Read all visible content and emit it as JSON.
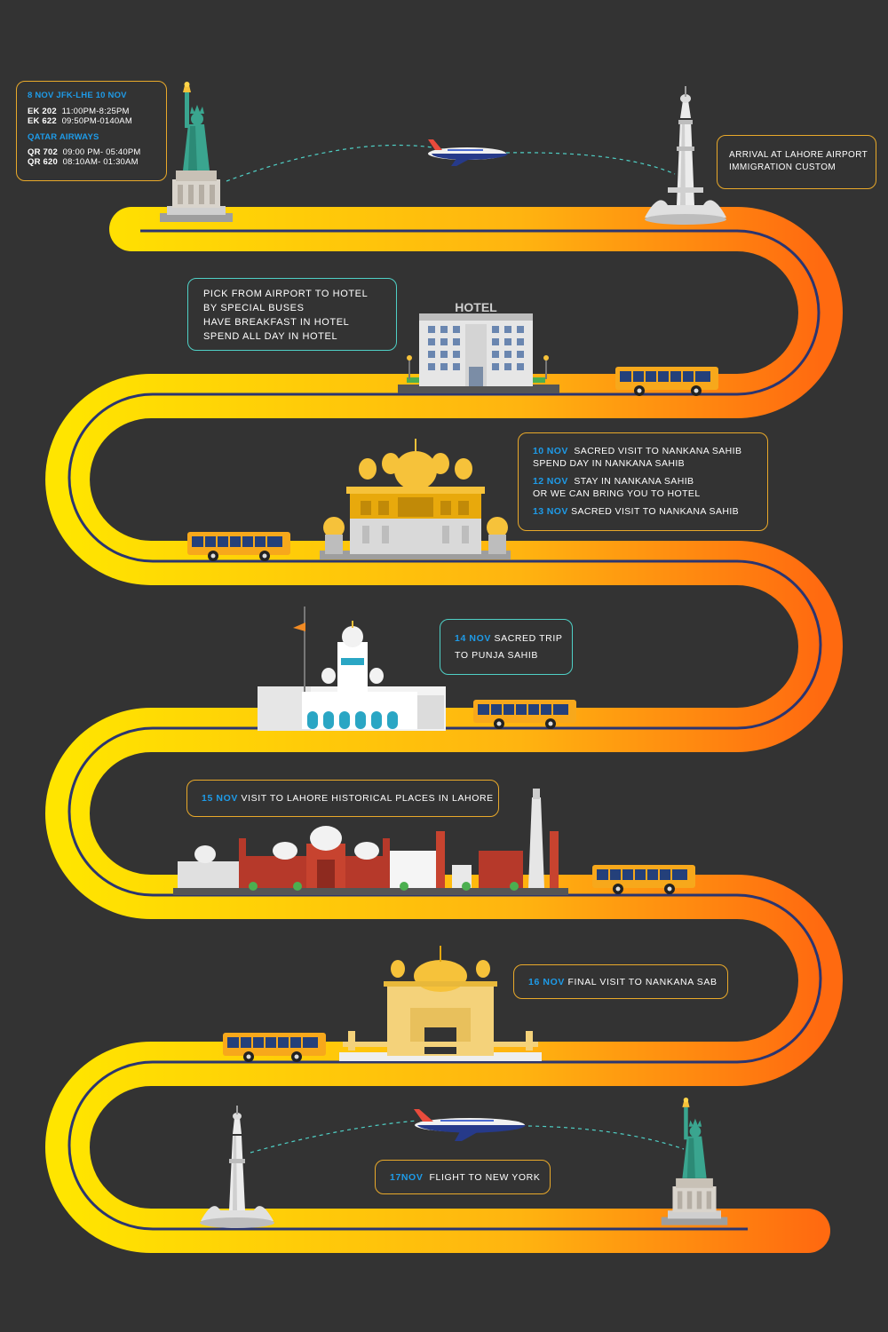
{
  "colors": {
    "background": "#333333",
    "road_start": "#ffe500",
    "road_end": "#ff6a10",
    "road_center_line": "#2b3570",
    "box_border_orange": "#e9a92a",
    "box_border_teal": "#4fd0c6",
    "highlight_blue": "#1e9be8"
  },
  "flight_out": {
    "header": "8 NOV JFK-LHE 10 NOV",
    "ek1_code": "EK 202",
    "ek1_time": "11:00PM-8:25PM",
    "ek2_code": "EK 622",
    "ek2_time": "09:50PM-0140AM",
    "airline": "QATAR AIRWAYS",
    "qr1_code": "QR 702",
    "qr1_time": "09:00 PM- 05:40PM",
    "qr2_code": "QR 620",
    "qr2_time": "08:10AM- 01:30AM"
  },
  "arrival": {
    "line1": "ARRIVAL AT LAHORE AIRPORT",
    "line2": "IMMIGRATION CUSTOM"
  },
  "hotel_info": {
    "line1": "PICK FROM AIRPORT TO HOTEL",
    "line2": "BY SPECIAL BUSES",
    "line3": "HAVE BREAKFAST IN HOTEL",
    "line4": "SPEND ALL DAY IN HOTEL",
    "sign": "HOTEL"
  },
  "nankana": {
    "date1": "10 NOV",
    "text1a": "SACRED VISIT TO NANKANA SAHIB",
    "text1b": "SPEND DAY IN NANKANA SAHIB",
    "date2": "12 NOV",
    "text2a": "STAY IN NANKANA SAHIB",
    "text2b": "OR WE CAN BRING YOU TO HOTEL",
    "date3": "13 NOV",
    "text3": "SACRED VISIT TO NANKANA SAHIB"
  },
  "punja": {
    "date": "14 NOV",
    "text1": "SACRED TRIP",
    "text2": "TO PUNJA SAHIB"
  },
  "lahore": {
    "date": "15 NOV",
    "text": "VISIT TO LAHORE HISTORICAL PLACES IN LAHORE"
  },
  "final_visit": {
    "date": "16 NOV",
    "text": "FINAL VISIT TO NANKANA SAB"
  },
  "flight_home": {
    "date": "17NOV",
    "text": "FLIGHT TO NEW YORK"
  },
  "icons": [
    "statue-of-liberty-icon",
    "minar-tower-icon",
    "airplane-icon",
    "hotel-building-icon",
    "bus-icon",
    "golden-temple-icon",
    "gurdwara-icon",
    "lahore-skyline-icon"
  ]
}
